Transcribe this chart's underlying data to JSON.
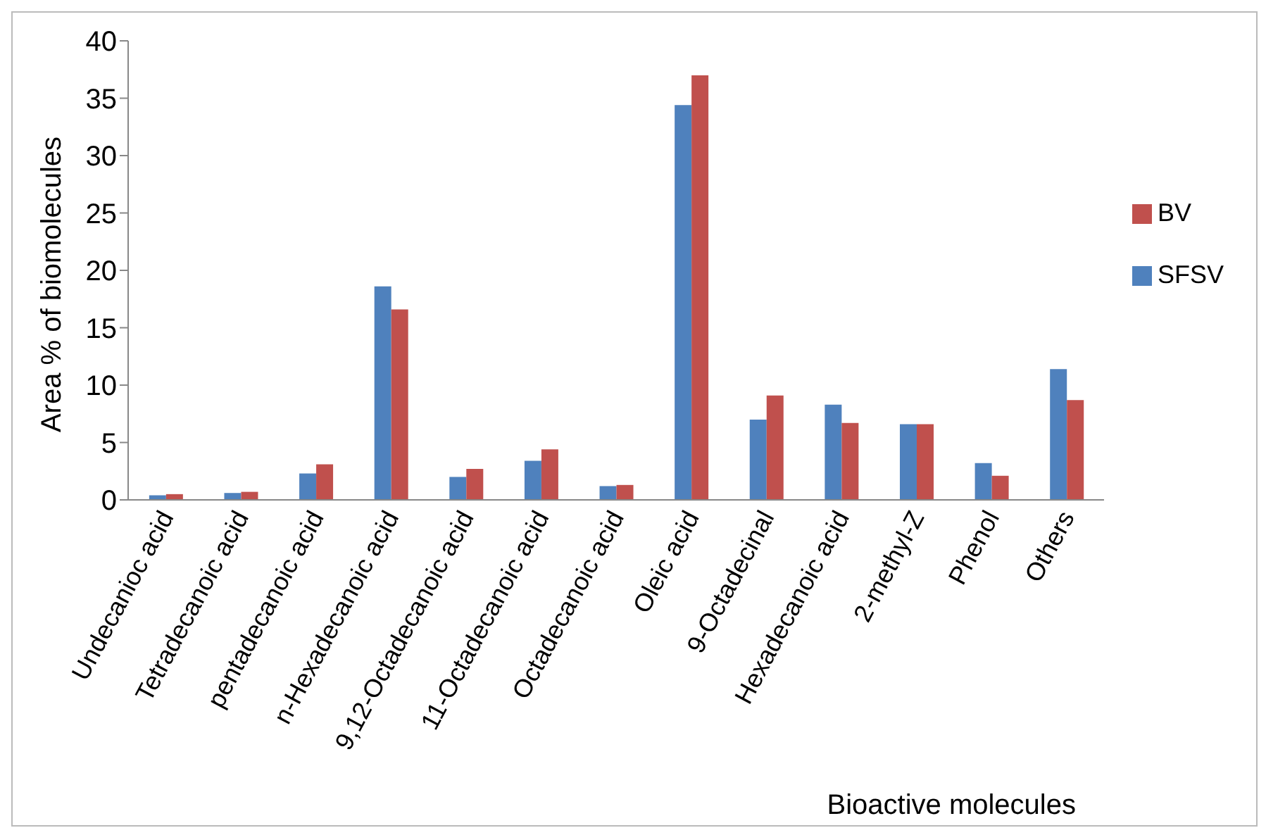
{
  "chart_data": {
    "type": "bar",
    "xlabel": "Bioactive molecules",
    "ylabel": "Area % of biomolecules",
    "categories": [
      "Undecanioc acid",
      "Tetradecanoic acid",
      "pentadecanoic acid",
      "n-Hexadecanoic acid",
      "9,12-Octadecanoic acid",
      "11-Octadecanoic acid",
      "Octadecanoic acid",
      "Oleic acid",
      "9-Octadecinal",
      "Hexadecanoic acid",
      "2-methyl-Z",
      "Phenol",
      "Others"
    ],
    "series": [
      {
        "name": "SFSV",
        "color": "#4f81bd",
        "values": [
          0.4,
          0.6,
          2.3,
          18.6,
          2.0,
          3.4,
          1.2,
          34.4,
          7.0,
          8.3,
          6.6,
          3.2,
          11.4
        ]
      },
      {
        "name": "BV",
        "color": "#c0504d",
        "values": [
          0.5,
          0.7,
          3.1,
          16.6,
          2.7,
          4.4,
          1.3,
          37.0,
          9.1,
          6.7,
          6.6,
          2.1,
          8.7
        ]
      }
    ],
    "ylim": [
      0,
      40
    ],
    "yticks": [
      0,
      5,
      10,
      15,
      20,
      25,
      30,
      35,
      40
    ],
    "legend": "right"
  }
}
